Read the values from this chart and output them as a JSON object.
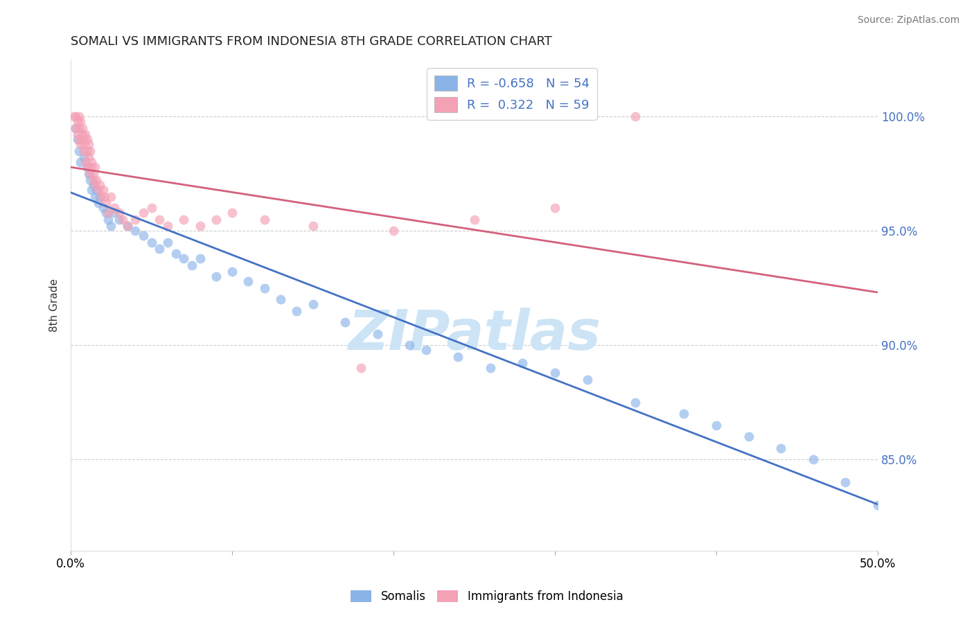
{
  "title": "SOMALI VS IMMIGRANTS FROM INDONESIA 8TH GRADE CORRELATION CHART",
  "source_text": "Source: ZipAtlas.com",
  "ylabel": "8th Grade",
  "xlim": [
    0.0,
    50.0
  ],
  "ylim": [
    81.0,
    102.5
  ],
  "yticks": [
    85.0,
    90.0,
    95.0,
    100.0
  ],
  "ytick_labels": [
    "85.0%",
    "90.0%",
    "95.0%",
    "100.0%"
  ],
  "xticks": [
    0.0,
    10.0,
    20.0,
    30.0,
    40.0,
    50.0
  ],
  "xtick_labels": [
    "0.0%",
    "",
    "",
    "",
    "",
    "50.0%"
  ],
  "legend_R1": "-0.658",
  "legend_N1": "54",
  "legend_R2": "0.322",
  "legend_N2": "59",
  "blue_color": "#8ab4e8",
  "pink_color": "#f4a0b5",
  "blue_line_color": "#4472c4",
  "pink_line_color": "#d4607a",
  "watermark": "ZIPatlas",
  "watermark_color": "#cce4f5",
  "blue_scatter_x": [
    0.3,
    0.4,
    0.5,
    0.6,
    0.8,
    1.0,
    1.1,
    1.2,
    1.3,
    1.4,
    1.5,
    1.6,
    1.7,
    1.8,
    2.0,
    2.2,
    2.3,
    2.5,
    2.7,
    3.0,
    3.5,
    4.0,
    4.5,
    5.0,
    5.5,
    6.0,
    6.5,
    7.0,
    7.5,
    8.0,
    9.0,
    10.0,
    11.0,
    12.0,
    13.0,
    14.0,
    15.0,
    17.0,
    19.0,
    21.0,
    22.0,
    24.0,
    26.0,
    28.0,
    30.0,
    32.0,
    35.0,
    38.0,
    40.0,
    42.0,
    44.0,
    46.0,
    48.0,
    50.0
  ],
  "blue_scatter_y": [
    99.5,
    99.0,
    98.5,
    98.0,
    98.2,
    97.8,
    97.5,
    97.2,
    96.8,
    97.0,
    96.5,
    96.8,
    96.2,
    96.5,
    96.0,
    95.8,
    95.5,
    95.2,
    95.8,
    95.5,
    95.2,
    95.0,
    94.8,
    94.5,
    94.2,
    94.5,
    94.0,
    93.8,
    93.5,
    93.8,
    93.0,
    93.2,
    92.8,
    92.5,
    92.0,
    91.5,
    91.8,
    91.0,
    90.5,
    90.0,
    89.8,
    89.5,
    89.0,
    89.2,
    88.8,
    88.5,
    87.5,
    87.0,
    86.5,
    86.0,
    85.5,
    85.0,
    84.0,
    83.0
  ],
  "pink_scatter_x": [
    0.2,
    0.3,
    0.3,
    0.4,
    0.4,
    0.5,
    0.5,
    0.5,
    0.6,
    0.6,
    0.7,
    0.7,
    0.8,
    0.8,
    0.8,
    0.9,
    0.9,
    1.0,
    1.0,
    1.0,
    1.1,
    1.1,
    1.2,
    1.2,
    1.3,
    1.3,
    1.4,
    1.4,
    1.5,
    1.5,
    1.6,
    1.7,
    1.8,
    1.9,
    2.0,
    2.1,
    2.2,
    2.3,
    2.5,
    2.7,
    3.0,
    3.2,
    3.5,
    4.0,
    4.5,
    5.0,
    5.5,
    6.0,
    7.0,
    8.0,
    9.0,
    10.0,
    12.0,
    15.0,
    18.0,
    20.0,
    25.0,
    30.0,
    35.0
  ],
  "pink_scatter_y": [
    100.0,
    100.0,
    99.5,
    99.8,
    99.2,
    100.0,
    99.5,
    99.0,
    99.8,
    98.8,
    99.5,
    99.2,
    99.0,
    98.5,
    98.8,
    99.2,
    98.0,
    99.0,
    98.5,
    97.8,
    98.8,
    98.2,
    98.5,
    97.5,
    98.0,
    97.8,
    97.5,
    97.2,
    97.8,
    97.0,
    97.2,
    96.8,
    97.0,
    96.5,
    96.8,
    96.5,
    96.2,
    95.8,
    96.5,
    96.0,
    95.8,
    95.5,
    95.2,
    95.5,
    95.8,
    96.0,
    95.5,
    95.2,
    95.5,
    95.2,
    95.5,
    95.8,
    95.5,
    95.2,
    89.0,
    95.0,
    95.5,
    96.0,
    100.0
  ]
}
